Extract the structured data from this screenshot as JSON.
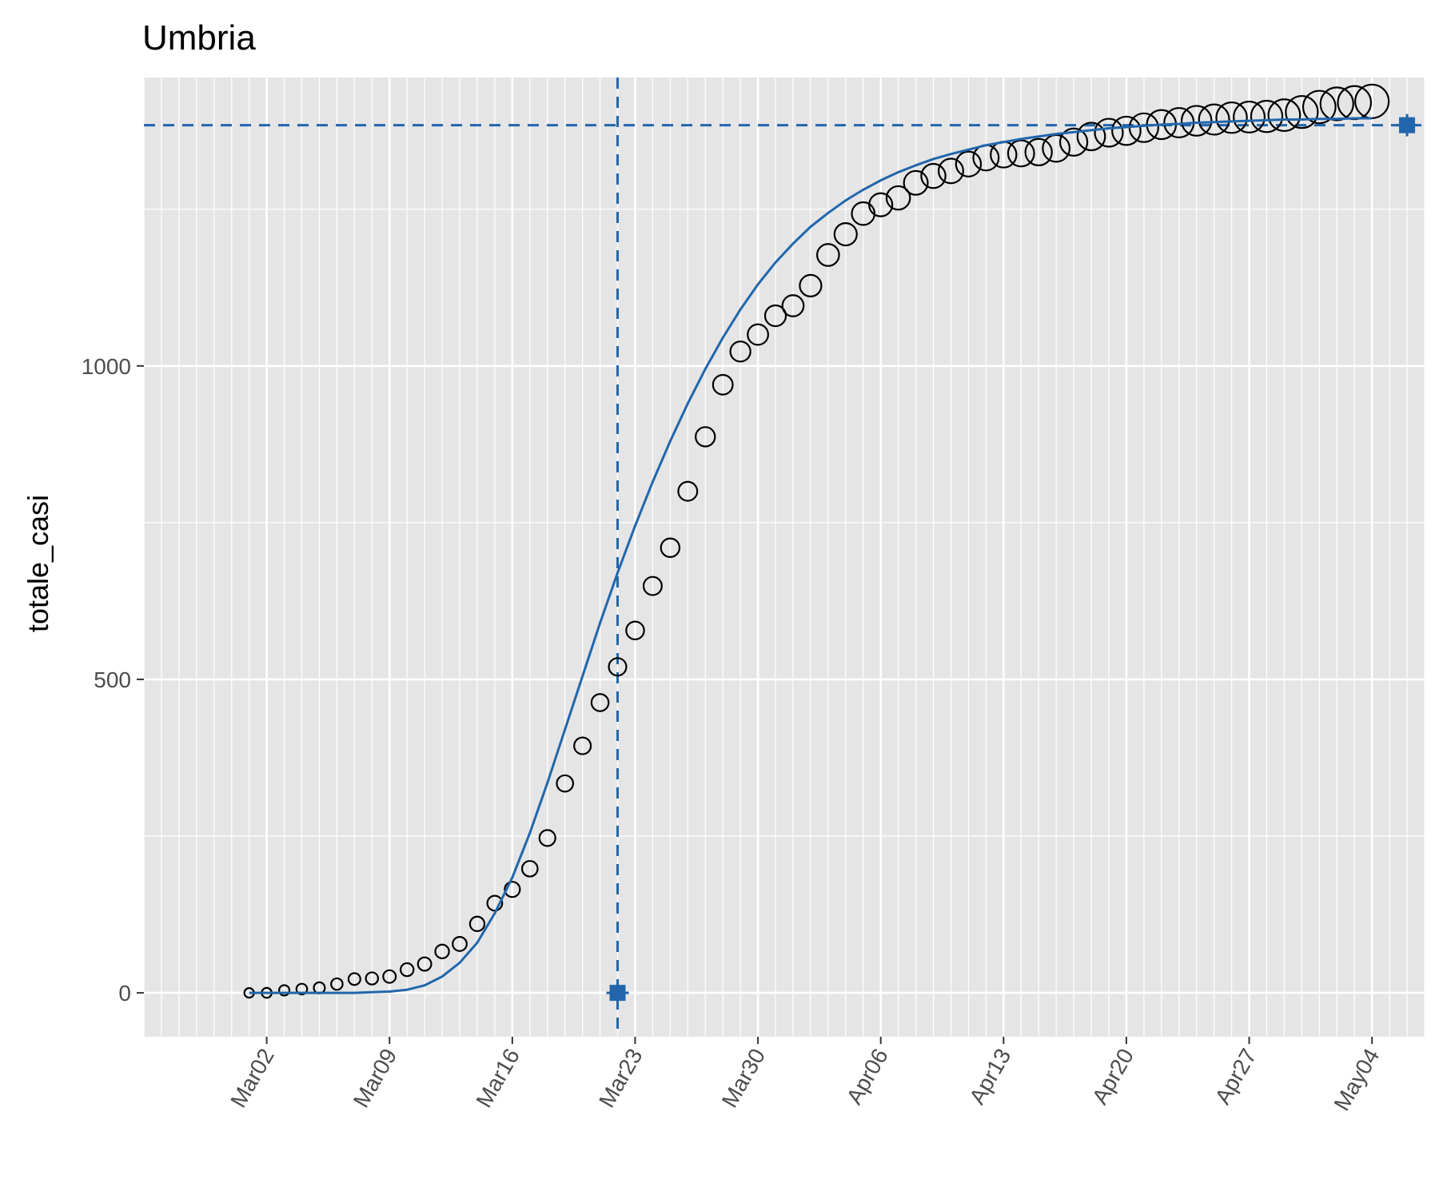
{
  "chart_data": {
    "type": "scatter",
    "title": "Umbria",
    "xlabel": "",
    "ylabel": "totale_casi",
    "x_range": [
      "2020-02-24",
      "2020-05-07"
    ],
    "ylim": [
      -70,
      1460
    ],
    "y_ticks": [
      0,
      500,
      1000
    ],
    "y_minor": [
      250,
      750,
      1250
    ],
    "x_ticks": [
      {
        "date": "2020-03-02",
        "label": "Mar02"
      },
      {
        "date": "2020-03-09",
        "label": "Mar09"
      },
      {
        "date": "2020-03-16",
        "label": "Mar16"
      },
      {
        "date": "2020-03-23",
        "label": "Mar23"
      },
      {
        "date": "2020-03-30",
        "label": "Mar30"
      },
      {
        "date": "2020-04-06",
        "label": "Apr06"
      },
      {
        "date": "2020-04-13",
        "label": "Apr13"
      },
      {
        "date": "2020-04-20",
        "label": "Apr20"
      },
      {
        "date": "2020-04-27",
        "label": "Apr27"
      },
      {
        "date": "2020-05-04",
        "label": "May04"
      }
    ],
    "grid": true,
    "colors": {
      "fit": "#2166ac",
      "points_stroke": "#000000",
      "panel": "#e5e5e5",
      "grid": "#ffffff"
    },
    "observed": {
      "start_date": "2020-03-01",
      "values": [
        0,
        0,
        4,
        6,
        8,
        14,
        22,
        23,
        26,
        37,
        46,
        66,
        78,
        110,
        143,
        165,
        198,
        247,
        334,
        394,
        463,
        520,
        578,
        649,
        710,
        800,
        887,
        970,
        1023,
        1050,
        1080,
        1096,
        1128,
        1177,
        1210,
        1243,
        1257,
        1268,
        1292,
        1303,
        1311,
        1322,
        1332,
        1337,
        1339,
        1341,
        1347,
        1357,
        1366,
        1372,
        1375,
        1380,
        1385,
        1388,
        1391,
        1393,
        1396,
        1397,
        1398,
        1400,
        1405,
        1413,
        1418,
        1420,
        1422
      ]
    },
    "fit": {
      "start_date": "2020-03-01",
      "values": [
        0,
        0,
        0,
        0,
        0,
        0,
        0,
        1,
        2,
        5,
        12,
        26,
        48,
        80,
        127,
        184,
        255,
        335,
        420,
        505,
        590,
        670,
        745,
        815,
        880,
        940,
        995,
        1045,
        1090,
        1130,
        1165,
        1195,
        1222,
        1244,
        1264,
        1281,
        1296,
        1309,
        1320,
        1330,
        1338,
        1345,
        1352,
        1357,
        1362,
        1366,
        1370,
        1373,
        1376,
        1379,
        1381,
        1383,
        1385,
        1386,
        1388,
        1389,
        1390,
        1391,
        1392,
        1393,
        1393,
        1394,
        1394,
        1395,
        1395
      ]
    },
    "reference_lines": {
      "vline_date": "2020-03-22",
      "hline_value": 1384
    },
    "markers": [
      {
        "date": "2020-03-22",
        "value": 0
      },
      {
        "date": "2020-05-06",
        "value": 1384
      }
    ]
  }
}
